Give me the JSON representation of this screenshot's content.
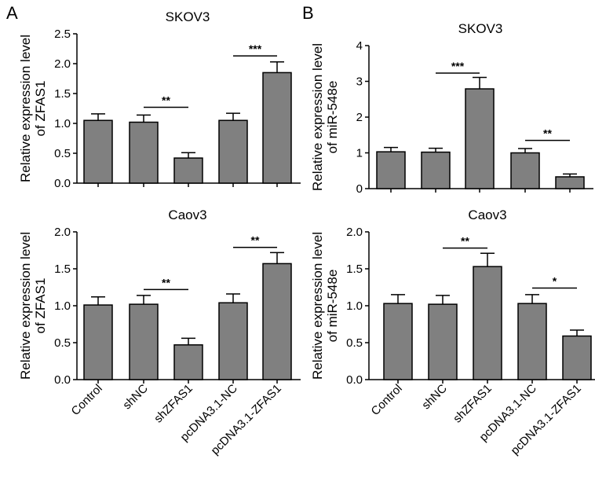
{
  "panel_labels": [
    "A",
    "B"
  ],
  "colors": {
    "bar": "#808080",
    "stroke": "#000000"
  },
  "chart_data": [
    {
      "type": "bar",
      "panel": "A",
      "title": "SKOV3",
      "ylabel": [
        "Relative expression level",
        "of ZFAS1"
      ],
      "categories": [
        "Control",
        "shNC",
        "shZFAS1",
        "pcDNA3.1-NC",
        "pcDNA3.1-ZFAS1"
      ],
      "values": [
        1.05,
        1.02,
        0.42,
        1.05,
        1.85
      ],
      "errors": [
        0.11,
        0.12,
        0.09,
        0.12,
        0.18
      ],
      "ylim": [
        0,
        2.5
      ],
      "yticks": [
        "0.0",
        "0.5",
        "1.0",
        "1.5",
        "2.0",
        "2.5"
      ],
      "significance": [
        {
          "from": 1,
          "to": 2,
          "label": "**",
          "y": 1.27
        },
        {
          "from": 3,
          "to": 4,
          "label": "***",
          "y": 2.13
        }
      ],
      "show_xticklabels": false
    },
    {
      "type": "bar",
      "panel": "B",
      "title": "SKOV3",
      "ylabel": [
        "Relative expression level",
        "of miR-548e"
      ],
      "categories": [
        "Control",
        "shNC",
        "shZFAS1",
        "pcDNA3.1-NC",
        "pcDNA3.1-ZFAS1"
      ],
      "values": [
        1.03,
        1.02,
        2.79,
        1.0,
        0.33
      ],
      "errors": [
        0.12,
        0.11,
        0.32,
        0.12,
        0.08
      ],
      "ylim": [
        0,
        4
      ],
      "yticks": [
        "0",
        "1",
        "2",
        "3",
        "4"
      ],
      "significance": [
        {
          "from": 1,
          "to": 2,
          "label": "***",
          "y": 3.23
        },
        {
          "from": 3,
          "to": 4,
          "label": "**",
          "y": 1.35
        }
      ],
      "show_xticklabels": false
    },
    {
      "type": "bar",
      "panel": "A",
      "title": "Caov3",
      "ylabel": [
        "Relative expression level",
        "of ZFAS1"
      ],
      "categories": [
        "Control",
        "shNC",
        "shZFAS1",
        "pcDNA3.1-NC",
        "pcDNA3.1-ZFAS1"
      ],
      "values": [
        1.01,
        1.02,
        0.47,
        1.04,
        1.57
      ],
      "errors": [
        0.11,
        0.12,
        0.09,
        0.12,
        0.15
      ],
      "ylim": [
        0,
        2.0
      ],
      "yticks": [
        "0.0",
        "0.5",
        "1.0",
        "1.5",
        "2.0"
      ],
      "significance": [
        {
          "from": 1,
          "to": 2,
          "label": "**",
          "y": 1.22
        },
        {
          "from": 3,
          "to": 4,
          "label": "**",
          "y": 1.79
        }
      ],
      "show_xticklabels": true
    },
    {
      "type": "bar",
      "panel": "B",
      "title": "Caov3",
      "ylabel": [
        "Relative expression level",
        "of miR-548e"
      ],
      "categories": [
        "Control",
        "shNC",
        "shZFAS1",
        "pcDNA3.1-NC",
        "pcDNA3.1-ZFAS1"
      ],
      "values": [
        1.03,
        1.02,
        1.53,
        1.03,
        0.59
      ],
      "errors": [
        0.12,
        0.12,
        0.18,
        0.12,
        0.08
      ],
      "ylim": [
        0,
        2.0
      ],
      "yticks": [
        "0.0",
        "0.5",
        "1.0",
        "1.5",
        "2.0"
      ],
      "significance": [
        {
          "from": 1,
          "to": 2,
          "label": "**",
          "y": 1.78
        },
        {
          "from": 3,
          "to": 4,
          "label": "*",
          "y": 1.24
        }
      ],
      "show_xticklabels": true
    }
  ]
}
